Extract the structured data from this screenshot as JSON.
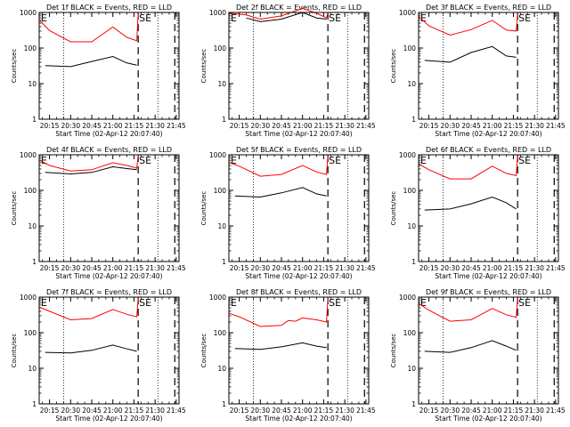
{
  "figure": {
    "background": "#ffffff",
    "colors": {
      "axes": "#000000",
      "events": "#000000",
      "lld": "#ff0000"
    }
  },
  "chart_data": [
    {
      "type": "line",
      "title": "Det 1f BLACK = Events, RED = LLD",
      "xlabel": "Start Time (02-Apr-12 20:07:40)",
      "ylabel": "Counts/sec",
      "yscale": "log",
      "ylim": [
        1,
        1000
      ],
      "xlim": [
        "20:07:40",
        "21:47"
      ],
      "xticks": [
        "20:15",
        "20:30",
        "20:45",
        "21:00",
        "21:15",
        "21:30",
        "21:45"
      ],
      "yticks": [
        "1",
        "10",
        "100",
        "1000"
      ],
      "markers": [
        "S",
        "E"
      ],
      "series": [
        {
          "color": "#ff0000",
          "x": [
            "20:08",
            "20:15",
            "20:30",
            "20:45",
            "21:00",
            "21:10",
            "21:17",
            "21:18"
          ],
          "values": [
            600,
            310,
            150,
            150,
            390,
            200,
            160,
            1000
          ]
        },
        {
          "color": "#000000",
          "x": [
            "20:12",
            "20:30",
            "20:45",
            "21:00",
            "21:10",
            "21:17"
          ],
          "values": [
            32,
            30,
            42,
            58,
            38,
            33
          ]
        }
      ]
    },
    {
      "type": "line",
      "title": "Det 2f BLACK = Events, RED = LLD",
      "xlabel": "Start Time (02-Apr-12 20:07:40)",
      "ylabel": "Counts/sec",
      "yscale": "log",
      "ylim": [
        1,
        1000
      ],
      "xlim": [
        "20:07:40",
        "21:47"
      ],
      "xticks": [
        "20:15",
        "20:30",
        "20:45",
        "21:00",
        "21:15",
        "21:30",
        "21:45"
      ],
      "yticks": [
        "1",
        "10",
        "100",
        "1000"
      ],
      "markers": [
        "S",
        "E"
      ],
      "series": [
        {
          "color": "#ff0000",
          "x": [
            "20:08",
            "20:20",
            "20:30",
            "20:45",
            "21:00",
            "21:10",
            "21:17",
            "21:18"
          ],
          "values": [
            950,
            850,
            650,
            800,
            1300,
            950,
            700,
            1000
          ]
        },
        {
          "color": "#000000",
          "x": [
            "20:20",
            "20:30",
            "20:45",
            "21:00",
            "21:10",
            "21:17"
          ],
          "values": [
            700,
            550,
            650,
            1000,
            700,
            650
          ]
        }
      ]
    },
    {
      "type": "line",
      "title": "Det 3f BLACK = Events, RED = LLD",
      "xlabel": "Start Time (02-Apr-12 20:07:40)",
      "ylabel": "Counts/sec",
      "yscale": "log",
      "ylim": [
        1,
        1000
      ],
      "xlim": [
        "20:07:40",
        "21:47"
      ],
      "xticks": [
        "20:15",
        "20:30",
        "20:45",
        "21:00",
        "21:15",
        "21:30",
        "21:45"
      ],
      "yticks": [
        "1",
        "10",
        "100",
        "1000"
      ],
      "markers": [
        "S",
        "E"
      ],
      "series": [
        {
          "color": "#ff0000",
          "x": [
            "20:08",
            "20:15",
            "20:30",
            "20:45",
            "21:00",
            "21:10",
            "21:17",
            "21:18"
          ],
          "values": [
            750,
            420,
            230,
            330,
            600,
            320,
            300,
            1000
          ]
        },
        {
          "color": "#000000",
          "x": [
            "20:12",
            "20:30",
            "20:45",
            "21:00",
            "21:10",
            "21:17"
          ],
          "values": [
            45,
            40,
            75,
            110,
            60,
            55
          ]
        }
      ]
    },
    {
      "type": "line",
      "title": "Det 4f BLACK = Events, RED = LLD",
      "xlabel": "Start Time (02-Apr-12 20:07:40)",
      "ylabel": "Counts/sec",
      "yscale": "log",
      "ylim": [
        1,
        1000
      ],
      "xlim": [
        "20:07:40",
        "21:47"
      ],
      "xticks": [
        "20:15",
        "20:30",
        "20:45",
        "21:00",
        "21:15",
        "21:30",
        "21:45"
      ],
      "yticks": [
        "1",
        "10",
        "100",
        "1000"
      ],
      "markers": [
        "S",
        "E"
      ],
      "series": [
        {
          "color": "#ff0000",
          "x": [
            "20:08",
            "20:15",
            "20:30",
            "20:45",
            "21:00",
            "21:10",
            "21:17",
            "21:18"
          ],
          "values": [
            700,
            500,
            350,
            380,
            600,
            500,
            420,
            1000
          ]
        },
        {
          "color": "#000000",
          "x": [
            "20:12",
            "20:30",
            "20:45",
            "21:00",
            "21:10",
            "21:17"
          ],
          "values": [
            320,
            290,
            320,
            460,
            410,
            380
          ]
        }
      ]
    },
    {
      "type": "line",
      "title": "Det 5f BLACK = Events, RED = LLD",
      "xlabel": "Start Time (02-Apr-12 20:07:40)",
      "ylabel": "Counts/sec",
      "yscale": "log",
      "ylim": [
        1,
        1000
      ],
      "xlim": [
        "20:07:40",
        "21:47"
      ],
      "xticks": [
        "20:15",
        "20:30",
        "20:45",
        "21:00",
        "21:15",
        "21:30",
        "21:45"
      ],
      "yticks": [
        "1",
        "10",
        "100",
        "1000"
      ],
      "markers": [
        "S",
        "E"
      ],
      "series": [
        {
          "color": "#ff0000",
          "x": [
            "20:08",
            "20:15",
            "20:30",
            "20:45",
            "21:00",
            "21:10",
            "21:17",
            "21:18"
          ],
          "values": [
            600,
            480,
            250,
            280,
            500,
            330,
            280,
            1000
          ]
        },
        {
          "color": "#000000",
          "x": [
            "20:12",
            "20:30",
            "20:45",
            "21:00",
            "21:10",
            "21:17"
          ],
          "values": [
            70,
            65,
            85,
            120,
            80,
            70
          ]
        }
      ]
    },
    {
      "type": "line",
      "title": "Det 6f BLACK = Events, RED = LLD",
      "xlabel": "Start Time (02-Apr-12 20:07:40)",
      "ylabel": "Counts/sec",
      "yscale": "log",
      "ylim": [
        1,
        1000
      ],
      "xlim": [
        "20:07:40",
        "21:47"
      ],
      "xticks": [
        "20:15",
        "20:30",
        "20:45",
        "21:00",
        "21:15",
        "21:30",
        "21:45"
      ],
      "yticks": [
        "1",
        "10",
        "100",
        "1000"
      ],
      "markers": [
        "S",
        "E"
      ],
      "series": [
        {
          "color": "#ff0000",
          "x": [
            "20:08",
            "20:15",
            "20:30",
            "20:45",
            "21:00",
            "21:10",
            "21:17",
            "21:18"
          ],
          "values": [
            550,
            380,
            210,
            210,
            480,
            300,
            260,
            1000
          ]
        },
        {
          "color": "#000000",
          "x": [
            "20:12",
            "20:30",
            "20:45",
            "21:00",
            "21:10",
            "21:17"
          ],
          "values": [
            28,
            30,
            42,
            65,
            45,
            30
          ]
        }
      ]
    },
    {
      "type": "line",
      "title": "Det 7f BLACK = Events, RED = LLD",
      "xlabel": "Start Time (02-Apr-12 20:07:40)",
      "ylabel": "Counts/sec",
      "yscale": "log",
      "ylim": [
        1,
        1000
      ],
      "xlim": [
        "20:07:40",
        "21:47"
      ],
      "xticks": [
        "20:15",
        "20:30",
        "20:45",
        "21:00",
        "21:15",
        "21:30",
        "21:45"
      ],
      "yticks": [
        "1",
        "10",
        "100",
        "1000"
      ],
      "markers": [
        "S",
        "E"
      ],
      "series": [
        {
          "color": "#ff0000",
          "x": [
            "20:08",
            "20:15",
            "20:30",
            "20:45",
            "21:00",
            "21:10",
            "21:17",
            "21:18"
          ],
          "values": [
            520,
            400,
            230,
            250,
            450,
            330,
            280,
            1000
          ]
        },
        {
          "color": "#000000",
          "x": [
            "20:12",
            "20:30",
            "20:45",
            "21:00",
            "21:10",
            "21:17"
          ],
          "values": [
            28,
            27,
            32,
            45,
            35,
            30
          ]
        }
      ]
    },
    {
      "type": "line",
      "title": "Det 8f BLACK = Events, RED = LLD",
      "xlabel": "Start Time (02-Apr-12 20:07:40)",
      "ylabel": "Counts/sec",
      "yscale": "log",
      "ylim": [
        1,
        1000
      ],
      "xlim": [
        "20:07:40",
        "21:47"
      ],
      "xticks": [
        "20:15",
        "20:30",
        "20:45",
        "21:00",
        "21:15",
        "21:30",
        "21:45"
      ],
      "yticks": [
        "1",
        "10",
        "100",
        "1000"
      ],
      "markers": [
        "S",
        "E"
      ],
      "series": [
        {
          "color": "#ff0000",
          "x": [
            "20:08",
            "20:15",
            "20:30",
            "20:45",
            "20:50",
            "20:55",
            "21:00",
            "21:10",
            "21:17",
            "21:18"
          ],
          "values": [
            350,
            280,
            150,
            160,
            220,
            210,
            260,
            230,
            200,
            1000
          ]
        },
        {
          "color": "#000000",
          "x": [
            "20:12",
            "20:30",
            "20:45",
            "21:00",
            "21:10",
            "21:17"
          ],
          "values": [
            36,
            34,
            40,
            52,
            42,
            38
          ]
        }
      ]
    },
    {
      "type": "line",
      "title": "Det 9f BLACK = Events, RED = LLD",
      "xlabel": "Start Time (02-Apr-12 20:07:40)",
      "ylabel": "Counts/sec",
      "yscale": "log",
      "ylim": [
        1,
        1000
      ],
      "xlim": [
        "20:07:40",
        "21:47"
      ],
      "xticks": [
        "20:15",
        "20:30",
        "20:45",
        "21:00",
        "21:15",
        "21:30",
        "21:45"
      ],
      "yticks": [
        "1",
        "10",
        "100",
        "1000"
      ],
      "markers": [
        "S",
        "E"
      ],
      "series": [
        {
          "color": "#ff0000",
          "x": [
            "20:08",
            "20:15",
            "20:30",
            "20:45",
            "21:00",
            "21:10",
            "21:17",
            "21:18"
          ],
          "values": [
            650,
            430,
            210,
            230,
            480,
            320,
            270,
            1000
          ]
        },
        {
          "color": "#000000",
          "x": [
            "20:12",
            "20:30",
            "20:45",
            "21:00",
            "21:10",
            "21:17"
          ],
          "values": [
            30,
            28,
            38,
            60,
            42,
            32
          ]
        }
      ]
    }
  ]
}
